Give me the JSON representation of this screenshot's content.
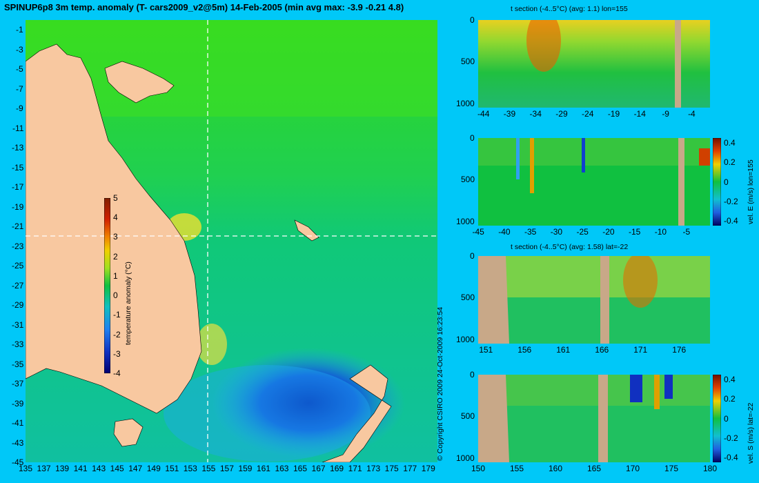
{
  "title": "SPINUP6p8 3m temp. anomaly (T- cars2009_v2@5m) 14-Feb-2005 (min avg max: -3.9 -0.21 4.8)",
  "copyright": "© Copyright CSIRO 2009   24-Oct-2009 16:23:54",
  "colors": {
    "background": "#00c8f8",
    "land": "#f8c8a0",
    "section_land": "#c8a888"
  },
  "chart_data": [
    {
      "type": "heatmap",
      "name": "map",
      "x": {
        "ticks": [
          "135",
          "137",
          "139",
          "141",
          "143",
          "145",
          "147",
          "149",
          "151",
          "153",
          "155",
          "157",
          "159",
          "161",
          "163",
          "165",
          "167",
          "169",
          "171",
          "173",
          "175",
          "177",
          "179"
        ],
        "range": [
          135,
          180
        ]
      },
      "y": {
        "ticks": [
          "-1",
          "-3",
          "-5",
          "-7",
          "-9",
          "-11",
          "-13",
          "-15",
          "-17",
          "-19",
          "-21",
          "-23",
          "-25",
          "-27",
          "-29",
          "-31",
          "-33",
          "-35",
          "-37",
          "-39",
          "-41",
          "-43",
          "-45"
        ],
        "range": [
          -45,
          0
        ]
      },
      "colorbar": {
        "label": "temperature anomaly (°C)",
        "ticks": [
          "5",
          "4",
          "3",
          "2",
          "1",
          "0",
          "-1",
          "-2",
          "-3",
          "-4"
        ],
        "range": [
          -4,
          5
        ]
      },
      "section_lines": {
        "lon": 155,
        "lat": -22
      }
    },
    {
      "type": "heatmap",
      "name": "t-section-lon",
      "title": "t section (-4..5°C) (avg: 1.1) lon=155",
      "x": {
        "ticks": [
          "-44",
          "-39",
          "-34",
          "-29",
          "-24",
          "-19",
          "-14",
          "-9",
          "-4"
        ],
        "range": [
          -45,
          -0.5
        ]
      },
      "y": {
        "ticks": [
          "0",
          "500",
          "1000"
        ],
        "range": [
          0,
          1050
        ]
      }
    },
    {
      "type": "heatmap",
      "name": "vel-e-section",
      "x": {
        "ticks": [
          "-45",
          "-40",
          "-35",
          "-30",
          "-25",
          "-20",
          "-15",
          "-10",
          "-5"
        ],
        "range": [
          -45,
          -0.5
        ]
      },
      "y": {
        "ticks": [
          "0",
          "500",
          "1000"
        ],
        "range": [
          0,
          1050
        ]
      },
      "colorbar": {
        "label": "vel. E (m/s) lon=155",
        "ticks": [
          "0.4",
          "0.2",
          "0",
          "-0.2",
          "-0.4"
        ],
        "range": [
          -0.45,
          0.45
        ]
      }
    },
    {
      "type": "heatmap",
      "name": "t-section-lat",
      "title": "t section (-4..5°C) (avg: 1.58) lat=-22",
      "x": {
        "ticks": [
          "151",
          "156",
          "161",
          "166",
          "171",
          "176"
        ],
        "range": [
          150,
          180
        ]
      },
      "y": {
        "ticks": [
          "0",
          "500",
          "1000"
        ],
        "range": [
          0,
          1050
        ]
      }
    },
    {
      "type": "heatmap",
      "name": "vel-s-section",
      "x": {
        "ticks": [
          "150",
          "155",
          "160",
          "165",
          "170",
          "175",
          "180"
        ],
        "range": [
          150,
          180
        ]
      },
      "y": {
        "ticks": [
          "0",
          "500",
          "1000"
        ],
        "range": [
          0,
          1050
        ]
      },
      "colorbar": {
        "label": "vel. S (m/s) lat=-22",
        "ticks": [
          "0.4",
          "0.2",
          "0",
          "-0.2",
          "-0.4"
        ],
        "range": [
          -0.45,
          0.45
        ]
      }
    }
  ]
}
